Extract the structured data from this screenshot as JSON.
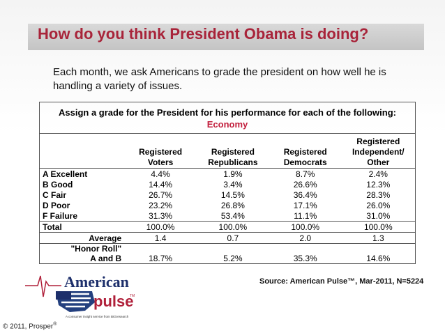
{
  "title": "How do you think President Obama is doing?",
  "intro": "Each month, we ask Americans to grade the president on how well he is handling a variety of issues.",
  "table": {
    "heading": "Assign a grade for the President for his performance for each of the following:",
    "subheading": "Economy",
    "columns": [
      [
        "Registered",
        "Voters"
      ],
      [
        "Registered",
        "Republicans"
      ],
      [
        "Registered",
        "Democrats"
      ],
      [
        "Registered",
        "Independent/",
        "Other"
      ]
    ],
    "rows": [
      {
        "label": "A  Excellent",
        "values": [
          "4.4%",
          "1.9%",
          "8.7%",
          "2.4%"
        ]
      },
      {
        "label": "B  Good",
        "values": [
          "14.4%",
          "3.4%",
          "26.6%",
          "12.3%"
        ]
      },
      {
        "label": "C  Fair",
        "values": [
          "26.7%",
          "14.5%",
          "36.4%",
          "28.3%"
        ]
      },
      {
        "label": "D  Poor",
        "values": [
          "23.2%",
          "26.8%",
          "17.1%",
          "26.0%"
        ]
      },
      {
        "label": "F  Failure",
        "values": [
          "31.3%",
          "53.4%",
          "11.1%",
          "31.0%"
        ]
      },
      {
        "label": "Total",
        "values": [
          "100.0%",
          "100.0%",
          "100.0%",
          "100.0%"
        ]
      }
    ],
    "average": {
      "label": "Average",
      "values": [
        "1.4",
        "0.7",
        "2.0",
        "1.3"
      ]
    },
    "honor_roll": {
      "label_line1": "\"Honor Roll\"",
      "label_line2": "A and B",
      "values": [
        "18.7%",
        "5.2%",
        "35.3%",
        "14.6%"
      ]
    }
  },
  "source": "Source: American Pulse™, Mar-2011, N=5224",
  "logo": {
    "word1": "American",
    "word2": "pulse",
    "tagline": "A consumer insight service from BIGresearch",
    "tm": "TM"
  },
  "copyright": "© 2011, Prosper",
  "copyright_sup": "®"
}
